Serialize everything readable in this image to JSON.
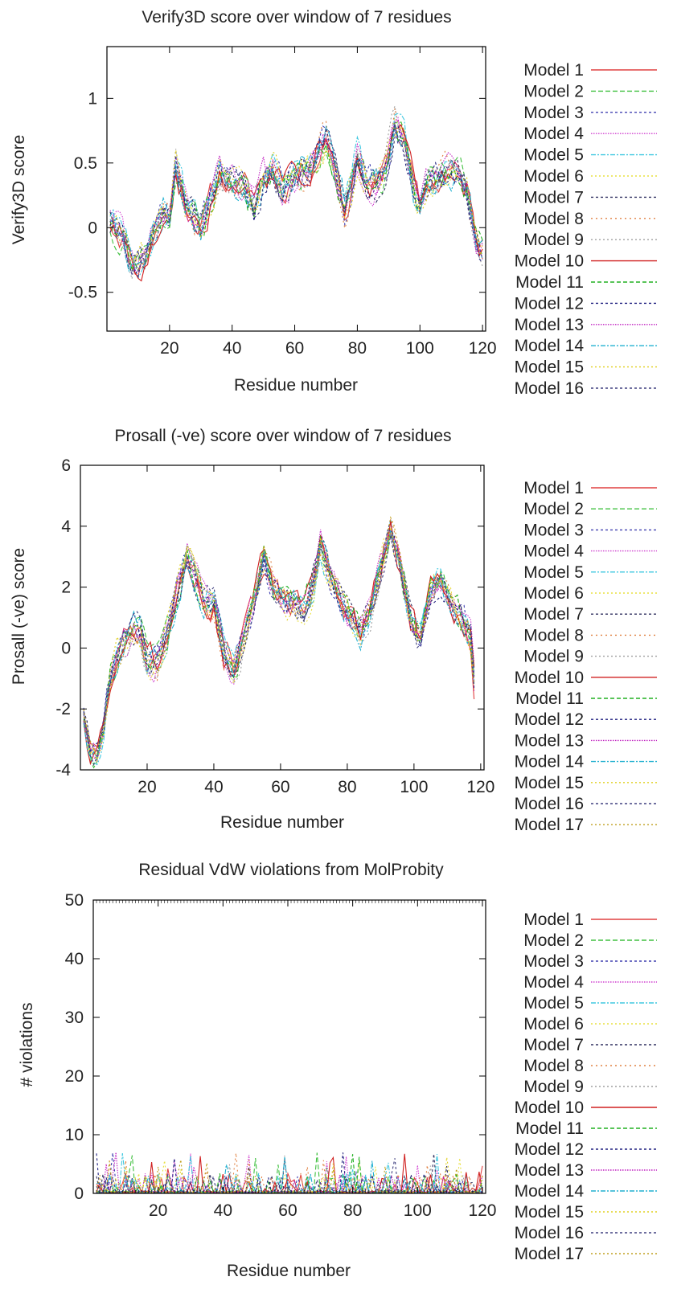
{
  "chart_data": [
    {
      "type": "line",
      "title": "Verify3D score over window of 7 residues",
      "xlabel": "Residue number",
      "ylabel": "Verify3D score",
      "xlim": [
        0,
        121
      ],
      "ylim": [
        -0.8,
        1.4
      ],
      "xticks": [
        20,
        40,
        60,
        80,
        100,
        120
      ],
      "yticks": [
        -0.5,
        0,
        0.5,
        1
      ],
      "ytick_labels": [
        "-0.5",
        "0",
        "0.5",
        "1"
      ],
      "minor_x_ticks": false,
      "grid": false,
      "legend_position": "right",
      "x_start": 1,
      "x_end": 120,
      "x_step": 1,
      "series_names": [
        "Model 1",
        "Model 2",
        "Model 3",
        "Model 4",
        "Model 5",
        "Model 6",
        "Model 7",
        "Model 8",
        "Model 9",
        "Model 10",
        "Model 11",
        "Model 12",
        "Model 13",
        "Model 14",
        "Model 15",
        "Model 16"
      ],
      "base_profile": [
        [
          1,
          0.05
        ],
        [
          5,
          -0.05
        ],
        [
          8,
          -0.3
        ],
        [
          12,
          -0.25
        ],
        [
          15,
          -0.05
        ],
        [
          18,
          0.1
        ],
        [
          20,
          0.05
        ],
        [
          22,
          0.45
        ],
        [
          25,
          0.2
        ],
        [
          28,
          0.1
        ],
        [
          30,
          0.0
        ],
        [
          33,
          0.2
        ],
        [
          36,
          0.4
        ],
        [
          40,
          0.35
        ],
        [
          44,
          0.3
        ],
        [
          47,
          0.15
        ],
        [
          50,
          0.35
        ],
        [
          53,
          0.45
        ],
        [
          56,
          0.3
        ],
        [
          60,
          0.4
        ],
        [
          63,
          0.45
        ],
        [
          66,
          0.5
        ],
        [
          70,
          0.7
        ],
        [
          73,
          0.45
        ],
        [
          76,
          0.15
        ],
        [
          78,
          0.3
        ],
        [
          80,
          0.55
        ],
        [
          83,
          0.35
        ],
        [
          86,
          0.35
        ],
        [
          89,
          0.45
        ],
        [
          92,
          0.8
        ],
        [
          95,
          0.65
        ],
        [
          98,
          0.3
        ],
        [
          100,
          0.15
        ],
        [
          103,
          0.35
        ],
        [
          106,
          0.35
        ],
        [
          109,
          0.45
        ],
        [
          112,
          0.4
        ],
        [
          115,
          0.3
        ],
        [
          118,
          -0.1
        ],
        [
          120,
          -0.2
        ]
      ],
      "amplitude": 0.14,
      "seed": 11
    },
    {
      "type": "line",
      "title": "Prosall (-ve) score over window of 7 residues",
      "xlabel": "Residue number",
      "ylabel": "Prosall (-ve) score",
      "xlim": [
        0,
        121
      ],
      "ylim": [
        -4,
        6
      ],
      "xticks": [
        20,
        40,
        60,
        80,
        100,
        120
      ],
      "yticks": [
        -4,
        -2,
        0,
        2,
        4,
        6
      ],
      "ytick_labels": [
        "-4",
        "-2",
        "0",
        "2",
        "4",
        "6"
      ],
      "minor_x_ticks": false,
      "grid": false,
      "legend_position": "right",
      "x_start": 1,
      "x_end": 118,
      "x_step": 1,
      "series_names": [
        "Model 1",
        "Model 2",
        "Model 3",
        "Model 4",
        "Model 5",
        "Model 6",
        "Model 7",
        "Model 8",
        "Model 9",
        "Model 10",
        "Model 11",
        "Model 12",
        "Model 13",
        "Model 14",
        "Model 15",
        "Model 16",
        "Model 17"
      ],
      "base_profile": [
        [
          1,
          -2.3
        ],
        [
          3,
          -3.4
        ],
        [
          5,
          -3.6
        ],
        [
          7,
          -2.6
        ],
        [
          9,
          -1.0
        ],
        [
          11,
          -0.3
        ],
        [
          13,
          0.2
        ],
        [
          16,
          0.6
        ],
        [
          18,
          0.5
        ],
        [
          20,
          -0.4
        ],
        [
          23,
          -0.5
        ],
        [
          26,
          0.5
        ],
        [
          29,
          1.8
        ],
        [
          32,
          3.1
        ],
        [
          34,
          2.5
        ],
        [
          37,
          1.6
        ],
        [
          40,
          1.4
        ],
        [
          43,
          -0.2
        ],
        [
          46,
          -0.8
        ],
        [
          49,
          0.3
        ],
        [
          52,
          1.6
        ],
        [
          55,
          3.0
        ],
        [
          58,
          2.0
        ],
        [
          61,
          1.6
        ],
        [
          64,
          1.4
        ],
        [
          67,
          1.2
        ],
        [
          70,
          2.2
        ],
        [
          72,
          3.4
        ],
        [
          75,
          2.4
        ],
        [
          78,
          1.8
        ],
        [
          81,
          1.0
        ],
        [
          84,
          0.6
        ],
        [
          87,
          1.2
        ],
        [
          90,
          2.6
        ],
        [
          93,
          3.9
        ],
        [
          96,
          2.6
        ],
        [
          99,
          1.0
        ],
        [
          102,
          0.2
        ],
        [
          105,
          1.8
        ],
        [
          108,
          2.3
        ],
        [
          111,
          1.5
        ],
        [
          114,
          1.0
        ],
        [
          117,
          0.4
        ],
        [
          118,
          -1.0
        ]
      ],
      "amplitude": 0.55,
      "seed": 29
    },
    {
      "type": "line",
      "title": "Residual VdW violations from MolProbity",
      "xlabel": "Residue number",
      "ylabel": "# violations",
      "xlim": [
        0,
        121
      ],
      "ylim": [
        0,
        50
      ],
      "xticks": [
        20,
        40,
        60,
        80,
        100,
        120
      ],
      "yticks": [
        0,
        10,
        20,
        30,
        40,
        50
      ],
      "ytick_labels": [
        "0",
        "10",
        "20",
        "30",
        "40",
        "50"
      ],
      "minor_x_ticks": true,
      "grid": false,
      "legend_position": "right",
      "x_start": 1,
      "x_end": 120,
      "x_step": 1,
      "series_names": [
        "Model 1",
        "Model 2",
        "Model 3",
        "Model 4",
        "Model 5",
        "Model 6",
        "Model 7",
        "Model 8",
        "Model 9",
        "Model 10",
        "Model 11",
        "Model 12",
        "Model 13",
        "Model 14",
        "Model 15",
        "Model 16",
        "Model 17"
      ],
      "base_profile": [
        [
          1,
          0.2
        ],
        [
          120,
          0.2
        ]
      ],
      "amplitude": 0,
      "spikes": {
        "probability": 0.22,
        "min": 0.5,
        "max": 7
      },
      "seed": 47
    }
  ],
  "series_styles": [
    {
      "color": "#e04040",
      "dash": ""
    },
    {
      "color": "#40c040",
      "dash": "6 3"
    },
    {
      "color": "#4040b0",
      "dash": "3 3"
    },
    {
      "color": "#d040d0",
      "dash": "1.5 1.5"
    },
    {
      "color": "#40c8e0",
      "dash": "6 2 2 2"
    },
    {
      "color": "#e8e040",
      "dash": "2 3"
    },
    {
      "color": "#303060",
      "dash": "3 3"
    },
    {
      "color": "#e08040",
      "dash": "2 4"
    },
    {
      "color": "#a0a0a0",
      "dash": "2 3"
    },
    {
      "color": "#d02020",
      "dash": ""
    },
    {
      "color": "#20b020",
      "dash": "5 3"
    },
    {
      "color": "#202080",
      "dash": "3 3"
    },
    {
      "color": "#c020c0",
      "dash": "1.5 1.5"
    },
    {
      "color": "#20b0d0",
      "dash": "6 2 2 2"
    },
    {
      "color": "#e0d020",
      "dash": "2 3"
    },
    {
      "color": "#404080",
      "dash": "3 3"
    },
    {
      "color": "#c0a020",
      "dash": "2 3"
    }
  ]
}
